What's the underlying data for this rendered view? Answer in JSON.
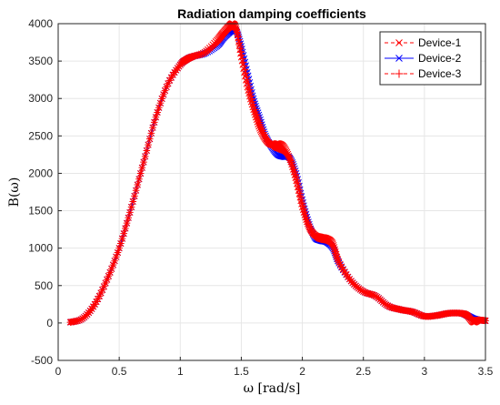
{
  "chart_data": {
    "type": "line",
    "title": "Radiation damping coefficients",
    "xlabel": "ω [rad/s]",
    "ylabel": "B(ω)",
    "xlim": [
      0,
      3.5
    ],
    "ylim": [
      -500,
      4000
    ],
    "xticks": [
      "0",
      "0.5",
      "1",
      "1.5",
      "2",
      "2.5",
      "3",
      "3.5"
    ],
    "yticks": [
      "-500",
      "0",
      "500",
      "1000",
      "1500",
      "2000",
      "2500",
      "3000",
      "3500",
      "4000"
    ],
    "grid": true,
    "legend_position": "top-right",
    "series": [
      {
        "name": "Device-1",
        "color": "#ff0000",
        "line_style": "dashed",
        "marker": "x",
        "x": [
          0.1,
          0.2,
          0.3,
          0.4,
          0.5,
          0.6,
          0.7,
          0.8,
          0.9,
          1.0,
          1.05,
          1.1,
          1.2,
          1.3,
          1.35,
          1.4,
          1.43,
          1.46,
          1.5,
          1.55,
          1.6,
          1.65,
          1.7,
          1.75,
          1.8,
          1.85,
          1.9,
          1.95,
          2.0,
          2.05,
          2.1,
          2.15,
          2.2,
          2.25,
          2.3,
          2.4,
          2.5,
          2.6,
          2.7,
          2.8,
          2.9,
          3.0,
          3.1,
          3.2,
          3.3,
          3.35,
          3.4,
          3.45,
          3.5
        ],
        "y": [
          10,
          60,
          250,
          580,
          1000,
          1550,
          2150,
          2750,
          3200,
          3450,
          3520,
          3560,
          3620,
          3780,
          3880,
          3970,
          4000,
          3920,
          3550,
          3150,
          2850,
          2600,
          2450,
          2380,
          2400,
          2350,
          2180,
          1900,
          1550,
          1300,
          1180,
          1150,
          1130,
          1060,
          820,
          560,
          420,
          360,
          230,
          180,
          150,
          90,
          100,
          130,
          130,
          100,
          10,
          40,
          30
        ]
      },
      {
        "name": "Device-2",
        "color": "#0000ff",
        "line_style": "solid",
        "marker": "x",
        "x": [
          0.1,
          0.2,
          0.3,
          0.4,
          0.5,
          0.6,
          0.7,
          0.8,
          0.9,
          1.0,
          1.05,
          1.1,
          1.2,
          1.3,
          1.35,
          1.4,
          1.43,
          1.46,
          1.5,
          1.55,
          1.6,
          1.65,
          1.7,
          1.75,
          1.8,
          1.85,
          1.9,
          1.95,
          2.0,
          2.05,
          2.1,
          2.15,
          2.2,
          2.25,
          2.3,
          2.4,
          2.5,
          2.6,
          2.7,
          2.8,
          2.9,
          3.0,
          3.1,
          3.2,
          3.3,
          3.35,
          3.4,
          3.45,
          3.5
        ],
        "y": [
          10,
          60,
          250,
          580,
          1000,
          1550,
          2150,
          2750,
          3200,
          3450,
          3520,
          3560,
          3600,
          3700,
          3800,
          3880,
          3920,
          3900,
          3700,
          3350,
          3000,
          2750,
          2500,
          2350,
          2250,
          2220,
          2200,
          2000,
          1650,
          1350,
          1150,
          1100,
          1080,
          1000,
          800,
          560,
          420,
          360,
          230,
          180,
          150,
          90,
          100,
          130,
          130,
          100,
          60,
          40,
          30
        ]
      },
      {
        "name": "Device-3",
        "color": "#ff0000",
        "line_style": "dashed",
        "marker": "+",
        "x": [
          0.1,
          0.2,
          0.3,
          0.4,
          0.5,
          0.6,
          0.7,
          0.8,
          0.9,
          1.0,
          1.05,
          1.1,
          1.2,
          1.3,
          1.35,
          1.4,
          1.43,
          1.46,
          1.5,
          1.55,
          1.6,
          1.65,
          1.7,
          1.75,
          1.8,
          1.85,
          1.9,
          1.95,
          2.0,
          2.05,
          2.1,
          2.15,
          2.2,
          2.25,
          2.3,
          2.4,
          2.5,
          2.6,
          2.7,
          2.8,
          2.9,
          3.0,
          3.1,
          3.2,
          3.3,
          3.35,
          3.4,
          3.45,
          3.5
        ],
        "y": [
          10,
          60,
          250,
          580,
          1000,
          1550,
          2150,
          2750,
          3200,
          3450,
          3520,
          3560,
          3610,
          3740,
          3840,
          3930,
          3960,
          3910,
          3620,
          3250,
          2920,
          2680,
          2480,
          2370,
          2330,
          2290,
          2190,
          1950,
          1600,
          1320,
          1160,
          1120,
          1100,
          1030,
          810,
          560,
          420,
          360,
          230,
          180,
          150,
          90,
          100,
          130,
          130,
          100,
          40,
          40,
          30
        ]
      }
    ]
  }
}
